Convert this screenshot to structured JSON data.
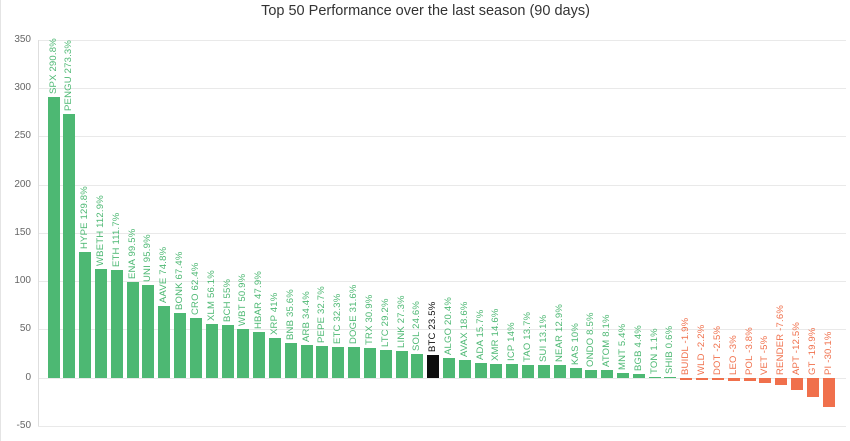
{
  "colors": {
    "positive": "#4db873",
    "negative": "#f0704c",
    "highlight": "#0d0d0d",
    "grid": "#e9e9e9",
    "axis": "#dedede",
    "tick_text": "#666666",
    "title_text": "#333333"
  },
  "chart_data": {
    "type": "bar",
    "title": "Top 50 Performance over the last season (90 days)",
    "xlabel": "",
    "ylabel": "",
    "ylim": [
      -50,
      350
    ],
    "yticks": [
      350,
      300,
      250,
      200,
      150,
      100,
      50,
      0,
      -50
    ],
    "grid": true,
    "legend": false,
    "bars": [
      {
        "symbol": "SPX",
        "value": 290.8,
        "label": "SPX 290.8%"
      },
      {
        "symbol": "PENGU",
        "value": 273.3,
        "label": "PENGU 273.3%"
      },
      {
        "symbol": "HYPE",
        "value": 129.8,
        "label": "HYPE 129.8%"
      },
      {
        "symbol": "WBETH",
        "value": 112.9,
        "label": "WBETH 112.9%"
      },
      {
        "symbol": "ETH",
        "value": 111.7,
        "label": "ETH 111.7%"
      },
      {
        "symbol": "ENA",
        "value": 99.5,
        "label": "ENA 99.5%"
      },
      {
        "symbol": "UNI",
        "value": 95.9,
        "label": "UNI 95.9%"
      },
      {
        "symbol": "AAVE",
        "value": 74.8,
        "label": "AAVE 74.8%"
      },
      {
        "symbol": "BONK",
        "value": 67.4,
        "label": "BONK 67.4%"
      },
      {
        "symbol": "CRO",
        "value": 62.4,
        "label": "CRO 62.4%"
      },
      {
        "symbol": "XLM",
        "value": 56.1,
        "label": "XLM 56.1%"
      },
      {
        "symbol": "BCH",
        "value": 55,
        "label": "BCH 55%"
      },
      {
        "symbol": "WBT",
        "value": 50.9,
        "label": "WBT 50.9%"
      },
      {
        "symbol": "HBAR",
        "value": 47.9,
        "label": "HBAR 47.9%"
      },
      {
        "symbol": "XRP",
        "value": 41,
        "label": "XRP 41%"
      },
      {
        "symbol": "BNB",
        "value": 35.6,
        "label": "BNB 35.6%"
      },
      {
        "symbol": "ARB",
        "value": 34.4,
        "label": "ARB 34.4%"
      },
      {
        "symbol": "PEPE",
        "value": 32.7,
        "label": "PEPE 32.7%"
      },
      {
        "symbol": "ETC",
        "value": 32.3,
        "label": "ETC 32.3%"
      },
      {
        "symbol": "DOGE",
        "value": 31.6,
        "label": "DOGE 31.6%"
      },
      {
        "symbol": "TRX",
        "value": 30.9,
        "label": "TRX 30.9%"
      },
      {
        "symbol": "LTC",
        "value": 29.2,
        "label": "LTC 29.2%"
      },
      {
        "symbol": "LINK",
        "value": 27.3,
        "label": "LINK 27.3%"
      },
      {
        "symbol": "SOL",
        "value": 24.6,
        "label": "SOL 24.6%"
      },
      {
        "symbol": "BTC",
        "value": 23.5,
        "label": "BTC 23.5%",
        "highlight": true
      },
      {
        "symbol": "ALGO",
        "value": 20.4,
        "label": "ALGO 20.4%"
      },
      {
        "symbol": "AVAX",
        "value": 18.6,
        "label": "AVAX 18.6%"
      },
      {
        "symbol": "ADA",
        "value": 15.7,
        "label": "ADA 15.7%"
      },
      {
        "symbol": "XMR",
        "value": 14.6,
        "label": "XMR 14.6%"
      },
      {
        "symbol": "ICP",
        "value": 14,
        "label": "ICP 14%"
      },
      {
        "symbol": "TAO",
        "value": 13.7,
        "label": "TAO 13.7%"
      },
      {
        "symbol": "SUI",
        "value": 13.1,
        "label": "SUI 13.1%"
      },
      {
        "symbol": "NEAR",
        "value": 12.9,
        "label": "NEAR 12.9%"
      },
      {
        "symbol": "KAS",
        "value": 10,
        "label": "KAS 10%"
      },
      {
        "symbol": "ONDO",
        "value": 8.5,
        "label": "ONDO 8.5%"
      },
      {
        "symbol": "ATOM",
        "value": 8.1,
        "label": "ATOM 8.1%"
      },
      {
        "symbol": "MNT",
        "value": 5.4,
        "label": "MNT 5.4%"
      },
      {
        "symbol": "BGB",
        "value": 4.4,
        "label": "BGB 4.4%"
      },
      {
        "symbol": "TON",
        "value": 1.1,
        "label": "TON 1.1%"
      },
      {
        "symbol": "SHIB",
        "value": 0.6,
        "label": "SHIB 0.6%"
      },
      {
        "symbol": "BUIDL",
        "value": -1.9,
        "label": "BUIDL -1.9%"
      },
      {
        "symbol": "WLD",
        "value": -2.2,
        "label": "WLD -2.2%"
      },
      {
        "symbol": "DOT",
        "value": -2.5,
        "label": "DOT -2.5%"
      },
      {
        "symbol": "LEO",
        "value": -3,
        "label": "LEO -3%"
      },
      {
        "symbol": "POL",
        "value": -3.8,
        "label": "POL -3.8%"
      },
      {
        "symbol": "VET",
        "value": -5,
        "label": "VET -5%"
      },
      {
        "symbol": "RENDER",
        "value": -7.6,
        "label": "RENDER -7.6%"
      },
      {
        "symbol": "APT",
        "value": -12.5,
        "label": "APT -12.5%"
      },
      {
        "symbol": "GT",
        "value": -19.9,
        "label": "GT -19.9%"
      },
      {
        "symbol": "PI",
        "value": -30.1,
        "label": "PI -30.1%"
      }
    ]
  }
}
